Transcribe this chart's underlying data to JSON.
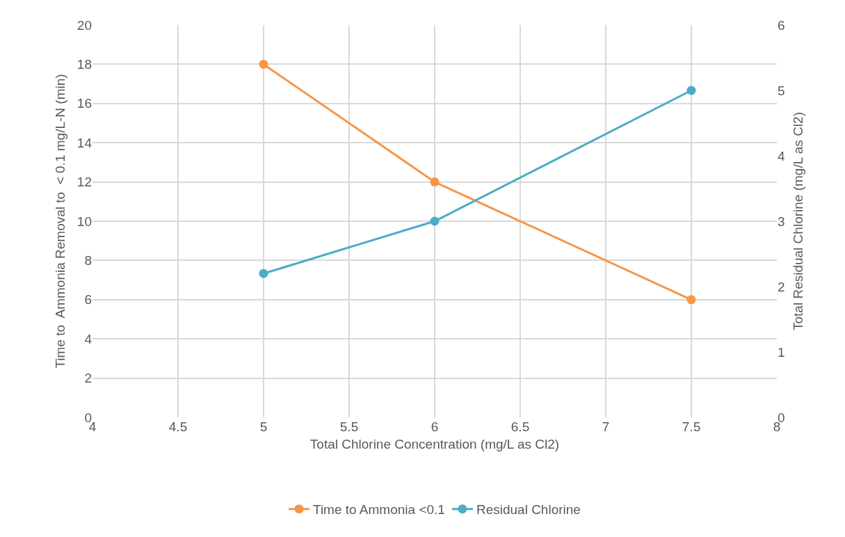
{
  "chart_data": {
    "type": "line",
    "xlabel": "Total Chlorine Concentration (mg/L as Cl2)",
    "ylabel": "Time to  Ammonia Removal to  < 0.1 mg/L-N (min)",
    "y2label": "Total Residual Chlorine (mg/L as Cl2)",
    "x": [
      5,
      6,
      7.5
    ],
    "series": [
      {
        "name": "Time to Ammonia <0.1",
        "color": "#f79646",
        "values": [
          18,
          12,
          6
        ]
      },
      {
        "name": "Residual Chlorine",
        "color": "#4bacc6",
        "values": [
          2.2,
          3.0,
          5.0
        ],
        "axis": "y2"
      }
    ],
    "xlim": [
      4,
      8
    ],
    "xticks": [
      4,
      4.5,
      5,
      5.5,
      6,
      6.5,
      7,
      7.5,
      8
    ],
    "ylim": [
      0,
      20
    ],
    "yticks": [
      0,
      2,
      4,
      6,
      8,
      10,
      12,
      14,
      16,
      18,
      20
    ],
    "y2lim": [
      0,
      6
    ],
    "y2ticks": [
      0,
      1,
      2,
      3,
      4,
      5,
      6
    ],
    "grid": true,
    "legend": "bottom",
    "marker": "circle",
    "line_style": "solid"
  }
}
